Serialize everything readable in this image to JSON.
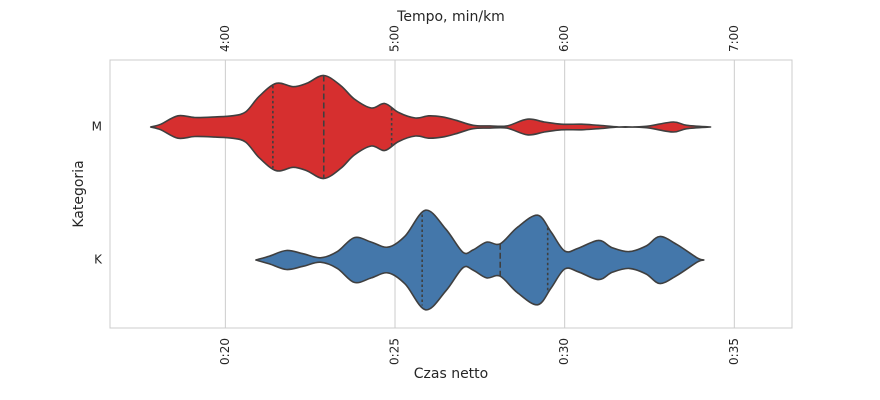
{
  "chart_data": {
    "type": "violin",
    "xlabel": "Czas netto",
    "ylabel": "Kategoria",
    "top_axis_label": "Tempo, min/km",
    "xlim": [
      16.6,
      36.7
    ],
    "x_ticks": [
      {
        "value": 20,
        "label": "0:20"
      },
      {
        "value": 25,
        "label": "0:25"
      },
      {
        "value": 30,
        "label": "0:30"
      },
      {
        "value": 35,
        "label": "0:35"
      }
    ],
    "top_ticks": [
      {
        "value": 20.0,
        "label": "4:00"
      },
      {
        "value": 25.0,
        "label": "5:00"
      },
      {
        "value": 30.0,
        "label": "6:00"
      },
      {
        "value": 35.0,
        "label": "7:00"
      }
    ],
    "categories": [
      "M",
      "K"
    ],
    "grid": true,
    "series": [
      {
        "category": "M",
        "color": "#d62f2f",
        "quartiles": [
          21.4,
          22.9,
          24.9
        ],
        "density": [
          [
            17.8,
            0.0
          ],
          [
            18.1,
            0.05
          ],
          [
            18.6,
            0.2
          ],
          [
            19.1,
            0.17
          ],
          [
            19.7,
            0.18
          ],
          [
            20.2,
            0.2
          ],
          [
            20.6,
            0.27
          ],
          [
            21.0,
            0.55
          ],
          [
            21.5,
            0.78
          ],
          [
            22.0,
            0.72
          ],
          [
            22.4,
            0.78
          ],
          [
            22.9,
            0.92
          ],
          [
            23.4,
            0.74
          ],
          [
            23.8,
            0.5
          ],
          [
            24.3,
            0.34
          ],
          [
            24.7,
            0.42
          ],
          [
            25.1,
            0.26
          ],
          [
            25.6,
            0.16
          ],
          [
            26.0,
            0.2
          ],
          [
            26.4,
            0.18
          ],
          [
            26.8,
            0.12
          ],
          [
            27.3,
            0.03
          ],
          [
            27.8,
            0.02
          ],
          [
            28.3,
            0.02
          ],
          [
            28.9,
            0.14
          ],
          [
            29.4,
            0.09
          ],
          [
            29.9,
            0.05
          ],
          [
            30.5,
            0.05
          ],
          [
            31.0,
            0.03
          ],
          [
            31.6,
            0.0
          ],
          [
            32.0,
            0.0
          ],
          [
            32.5,
            0.02
          ],
          [
            33.2,
            0.09
          ],
          [
            33.6,
            0.03
          ],
          [
            34.3,
            0.0
          ]
        ]
      },
      {
        "category": "K",
        "color": "#4477aa",
        "quartiles": [
          25.8,
          28.1,
          29.5
        ],
        "density": [
          [
            20.9,
            0.0
          ],
          [
            21.3,
            0.07
          ],
          [
            21.8,
            0.17
          ],
          [
            22.3,
            0.11
          ],
          [
            22.8,
            0.04
          ],
          [
            23.3,
            0.15
          ],
          [
            23.8,
            0.4
          ],
          [
            24.3,
            0.32
          ],
          [
            24.8,
            0.23
          ],
          [
            25.3,
            0.43
          ],
          [
            25.9,
            0.89
          ],
          [
            26.5,
            0.55
          ],
          [
            27.0,
            0.14
          ],
          [
            27.3,
            0.18
          ],
          [
            27.7,
            0.32
          ],
          [
            28.1,
            0.29
          ],
          [
            28.6,
            0.58
          ],
          [
            29.2,
            0.8
          ],
          [
            29.6,
            0.5
          ],
          [
            30.0,
            0.16
          ],
          [
            30.4,
            0.21
          ],
          [
            31.0,
            0.35
          ],
          [
            31.4,
            0.22
          ],
          [
            31.9,
            0.15
          ],
          [
            32.4,
            0.25
          ],
          [
            32.8,
            0.42
          ],
          [
            33.3,
            0.28
          ],
          [
            33.9,
            0.04
          ],
          [
            34.1,
            0.0
          ]
        ]
      }
    ]
  }
}
